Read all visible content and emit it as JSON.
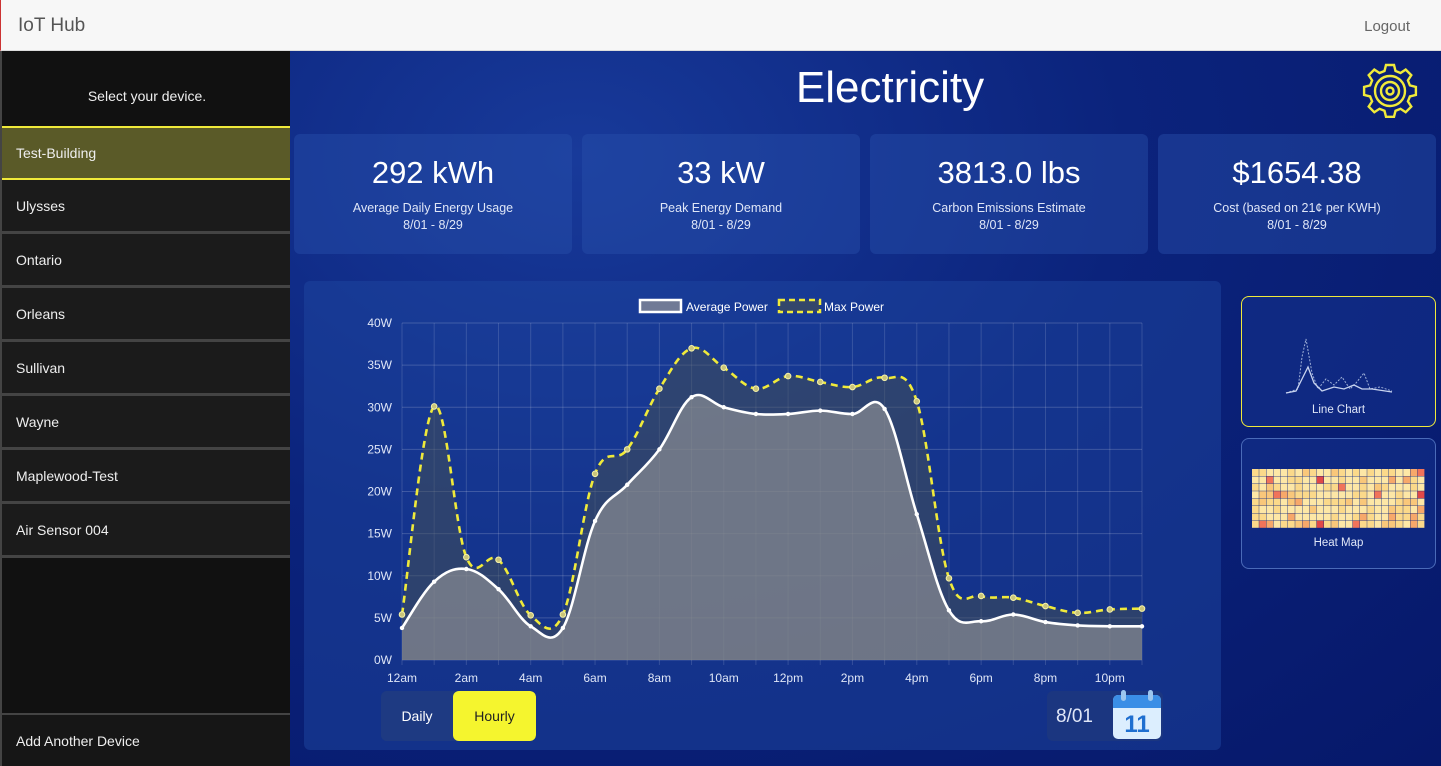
{
  "app": {
    "title": "IoT Hub",
    "logout_label": "Logout"
  },
  "sidebar": {
    "title": "Select your device.",
    "devices": [
      "Test-Building",
      "Ulysses",
      "Ontario",
      "Orleans",
      "Sullivan",
      "Wayne",
      "Maplewood-Test",
      "Air Sensor 004"
    ],
    "active_index": 0,
    "add_label": "Add Another Device"
  },
  "main": {
    "title": "Electricity",
    "settings_icon": "gear-icon",
    "stats": [
      {
        "value": "292 kWh",
        "label": "Average Daily Energy Usage",
        "range": "8/01 - 8/29"
      },
      {
        "value": "33 kW",
        "label": "Peak Energy Demand",
        "range": "8/01 - 8/29"
      },
      {
        "value": "3813.0 lbs",
        "label": "Carbon Emissions Estimate",
        "range": "8/01 - 8/29"
      },
      {
        "value": "$1654.38",
        "label": "Cost (based on 21¢ per KWH)",
        "range": "8/01 - 8/29"
      }
    ],
    "toggle": {
      "daily_label": "Daily",
      "hourly_label": "Hourly",
      "selected": "Hourly"
    },
    "date": {
      "label": "8/01",
      "calendar_day": "11"
    },
    "views": {
      "line_label": "Line Chart",
      "heat_label": "Heat Map",
      "selected": "Line Chart"
    }
  },
  "chart_data": {
    "type": "line",
    "x": [
      "12am",
      "1am",
      "2am",
      "3am",
      "4am",
      "5am",
      "6am",
      "7am",
      "8am",
      "9am",
      "10am",
      "11am",
      "12pm",
      "1pm",
      "2pm",
      "3pm",
      "4pm",
      "5pm",
      "6pm",
      "7pm",
      "8pm",
      "9pm",
      "10pm",
      "11pm"
    ],
    "x_tick_labels": [
      "12am",
      "2am",
      "4am",
      "6am",
      "8am",
      "10am",
      "12pm",
      "2pm",
      "4pm",
      "6pm",
      "8pm",
      "10pm"
    ],
    "y_tick_labels": [
      "0W",
      "5W",
      "10W",
      "15W",
      "20W",
      "25W",
      "30W",
      "35W",
      "40W"
    ],
    "ylim": [
      0,
      40
    ],
    "grid": true,
    "legend": "top-center",
    "series": [
      {
        "name": "Average Power",
        "color": "#ffffff",
        "style": "solid",
        "values": [
          3.8,
          9.3,
          10.8,
          8.4,
          4.0,
          3.8,
          16.5,
          20.8,
          25.0,
          31.2,
          30.0,
          29.2,
          29.2,
          29.6,
          29.2,
          29.8,
          17.3,
          5.9,
          4.6,
          5.4,
          4.5,
          4.1,
          4.0,
          4.0
        ]
      },
      {
        "name": "Max Power",
        "color": "#f0ea3a",
        "style": "dashed",
        "values": [
          5.4,
          30.1,
          12.2,
          11.9,
          5.3,
          5.4,
          22.1,
          25.0,
          32.2,
          37.0,
          34.7,
          32.2,
          33.7,
          33.0,
          32.4,
          33.5,
          30.7,
          9.7,
          7.6,
          7.4,
          6.4,
          5.6,
          6.0,
          6.1
        ]
      }
    ]
  }
}
